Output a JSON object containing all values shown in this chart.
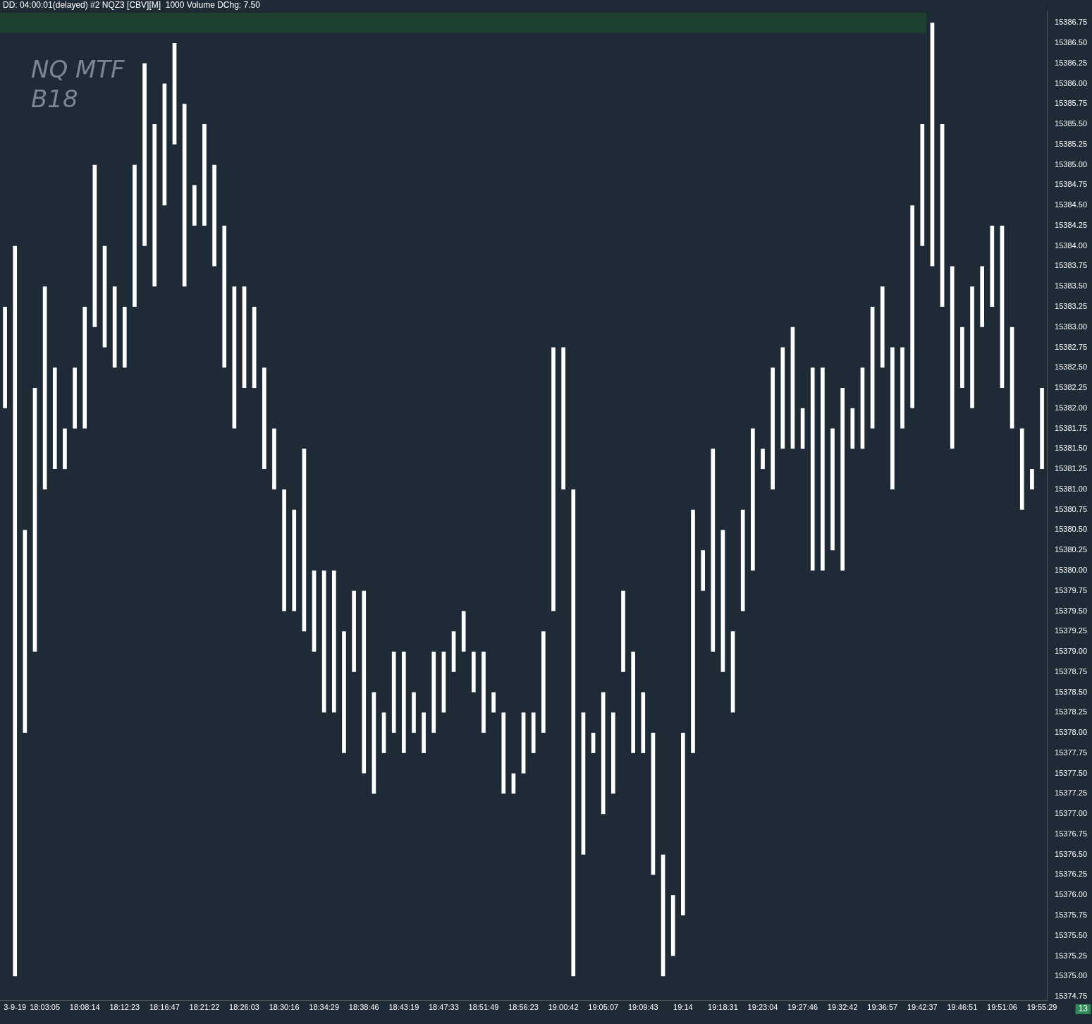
{
  "chart_data": {
    "type": "bar",
    "title": "NQ MTF B18",
    "subtitle": "DD: 04:00:01(delayed) #2 NQZ3 [CBV][M]  1000 Volume DChg: 7.50",
    "categories": [
      null,
      "3-9-19",
      null,
      null,
      "18:03:05",
      null,
      null,
      null,
      "18:08:14",
      null,
      null,
      null,
      "18:12:23",
      null,
      null,
      null,
      "18:16:47",
      null,
      null,
      null,
      "18:21:22",
      null,
      null,
      null,
      "18:26:03",
      null,
      null,
      null,
      "18:30:16",
      null,
      null,
      null,
      "18:34:29",
      null,
      null,
      null,
      "18:38:46",
      null,
      null,
      null,
      "18:43:19",
      null,
      null,
      null,
      "18:47:33",
      null,
      null,
      null,
      "18:51:49",
      null,
      null,
      null,
      "18:56:23",
      null,
      null,
      null,
      "19:00:42",
      null,
      null,
      null,
      "19:05:07",
      null,
      null,
      null,
      "19:09:43",
      null,
      null,
      null,
      "19:14",
      null,
      null,
      null,
      "19:18:31",
      null,
      null,
      null,
      "19:23:04",
      null,
      null,
      null,
      "19:27:46",
      null,
      null,
      null,
      "19:32:42",
      null,
      null,
      null,
      "19:36:57",
      null,
      null,
      null,
      "19:42:37",
      null,
      null,
      null,
      "19:46:51",
      null,
      null,
      null,
      "19:51:06",
      null,
      null,
      null,
      "19:55:29"
    ],
    "base": [
      15382,
      15375,
      15378,
      15379,
      15381,
      15381.25,
      15381.25,
      15381.75,
      15381.75,
      15383,
      15382.75,
      15382.5,
      15382.5,
      15383.25,
      15384,
      15383.5,
      15384.5,
      15385.25,
      15383.5,
      15384.25,
      15384.25,
      15383.75,
      15382.5,
      15381.75,
      15382.25,
      15382.25,
      15381.25,
      15381,
      15379.5,
      15379.5,
      15379.25,
      15379,
      15378.25,
      15378.25,
      15377.75,
      15378.75,
      15377.5,
      15377.25,
      15377.75,
      15378,
      15377.75,
      15378,
      15377.75,
      15378,
      15378.25,
      15378.75,
      15379,
      15378.5,
      15378,
      15378.25,
      15377.25,
      15377.25,
      15377.5,
      15377.75,
      15378,
      15379.5,
      15381,
      15375,
      15376.5,
      15377.75,
      15377,
      15377.25,
      15378.75,
      15377.75,
      15377.75,
      15376.25,
      15375,
      15375.25,
      15375.75,
      15377.75,
      15379.75,
      15379,
      15378.75,
      15378.25,
      15379.5,
      15380,
      15381.25,
      15381,
      15381.5,
      15381.5,
      15381.5,
      15380,
      15380,
      15380.25,
      15380,
      15381.5,
      15381.5,
      15381.75,
      15382.5,
      15381,
      15381.75,
      15382,
      15384,
      15383.75,
      15383.25,
      15381.5,
      15382.25,
      15382,
      15383,
      15383.25,
      15382.25,
      15381.75,
      15380.75,
      15381,
      15381.25
    ],
    "values": [
      1.25,
      9,
      2.5,
      3.25,
      2.5,
      1.25,
      0.5,
      0.75,
      1.5,
      2,
      1.25,
      1,
      0.75,
      1.75,
      2.25,
      2,
      1.5,
      1.25,
      2.25,
      0.5,
      1.25,
      1.25,
      1.75,
      1.75,
      1.25,
      1,
      1.25,
      0.75,
      1.5,
      1.25,
      2.25,
      1,
      1.75,
      1.75,
      1.5,
      1,
      2.25,
      1.25,
      0.5,
      1,
      1.25,
      0.5,
      0.5,
      1,
      0.75,
      0.5,
      0.5,
      0.5,
      1,
      0.25,
      1,
      0.25,
      0.75,
      0.5,
      1.25,
      3.25,
      1.75,
      6,
      1.75,
      0.25,
      1.5,
      1,
      1,
      1.25,
      0.75,
      1.75,
      1.5,
      0.75,
      2.25,
      3,
      0.5,
      2.5,
      1.75,
      1,
      1.25,
      1.75,
      0.25,
      1.5,
      1.25,
      1.5,
      0.5,
      2.5,
      2.5,
      1.5,
      2.25,
      0.5,
      1,
      1.5,
      1,
      1.75,
      1,
      2.5,
      1.5,
      3,
      2.25,
      2.25,
      0.75,
      1.5,
      0.75,
      1,
      2,
      1.25,
      1,
      0.25,
      1
    ],
    "color": "#ffffff",
    "ylim": [
      15374.7,
      15386.9
    ],
    "yticks": [
      {
        "value": 15374.75,
        "label": "15374.75"
      },
      {
        "value": 15375,
        "label": "15375.00"
      },
      {
        "value": 15375.25,
        "label": "15375.25"
      },
      {
        "value": 15375.5,
        "label": "15375.50"
      },
      {
        "value": 15375.75,
        "label": "15375.75"
      },
      {
        "value": 15376,
        "label": "15376.00"
      },
      {
        "value": 15376.25,
        "label": "15376.25"
      },
      {
        "value": 15376.5,
        "label": "15376.50"
      },
      {
        "value": 15376.75,
        "label": "15376.75"
      },
      {
        "value": 15377,
        "label": "15377.00"
      },
      {
        "value": 15377.25,
        "label": "15377.25"
      },
      {
        "value": 15377.5,
        "label": "15377.50"
      },
      {
        "value": 15377.75,
        "label": "15377.75"
      },
      {
        "value": 15378,
        "label": "15378.00"
      },
      {
        "value": 15378.25,
        "label": "15378.25"
      },
      {
        "value": 15378.5,
        "label": "15378.50"
      },
      {
        "value": 15378.75,
        "label": "15378.75"
      },
      {
        "value": 15379,
        "label": "15379.00"
      },
      {
        "value": 15379.25,
        "label": "15379.25"
      },
      {
        "value": 15379.5,
        "label": "15379.50"
      },
      {
        "value": 15379.75,
        "label": "15379.75"
      },
      {
        "value": 15380,
        "label": "15380.00"
      },
      {
        "value": 15380.25,
        "label": "15380.25"
      },
      {
        "value": 15380.5,
        "label": "15380.50"
      },
      {
        "value": 15380.75,
        "label": "15380.75"
      },
      {
        "value": 15381,
        "label": "15381.00"
      },
      {
        "value": 15381.25,
        "label": "15381.25"
      },
      {
        "value": 15381.5,
        "label": "15381.50"
      },
      {
        "value": 15381.75,
        "label": "15381.75"
      },
      {
        "value": 15382,
        "label": "15382.00"
      },
      {
        "value": 15382.25,
        "label": "15382.25"
      },
      {
        "value": 15382.5,
        "label": "15382.50"
      },
      {
        "value": 15382.75,
        "label": "15382.75"
      },
      {
        "value": 15383,
        "label": "15383.00"
      },
      {
        "value": 15383.25,
        "label": "15383.25"
      },
      {
        "value": 15383.5,
        "label": "15383.50"
      },
      {
        "value": 15383.75,
        "label": "15383.75"
      },
      {
        "value": 15384,
        "label": "15384.00"
      },
      {
        "value": 15384.25,
        "label": "15384.25"
      },
      {
        "value": 15384.5,
        "label": "15384.50"
      },
      {
        "value": 15384.75,
        "label": "15384.75"
      },
      {
        "value": 15385,
        "label": "15385.00"
      },
      {
        "value": 15385.25,
        "label": "15385.25"
      },
      {
        "value": 15385.5,
        "label": "15385.50"
      },
      {
        "value": 15385.75,
        "label": "15385.75"
      },
      {
        "value": 15386,
        "label": "15386.00"
      },
      {
        "value": 15386.25,
        "label": "15386.25"
      },
      {
        "value": 15386.5,
        "label": "15386.50"
      },
      {
        "value": 15386.75,
        "label": "15386.75"
      }
    ],
    "bands": [
      {
        "axis": "y",
        "from": 15386.625,
        "to": 15386.875,
        "color": "#1d4030"
      }
    ],
    "annotations": [
      "13"
    ],
    "legend": false,
    "grid": false
  }
}
